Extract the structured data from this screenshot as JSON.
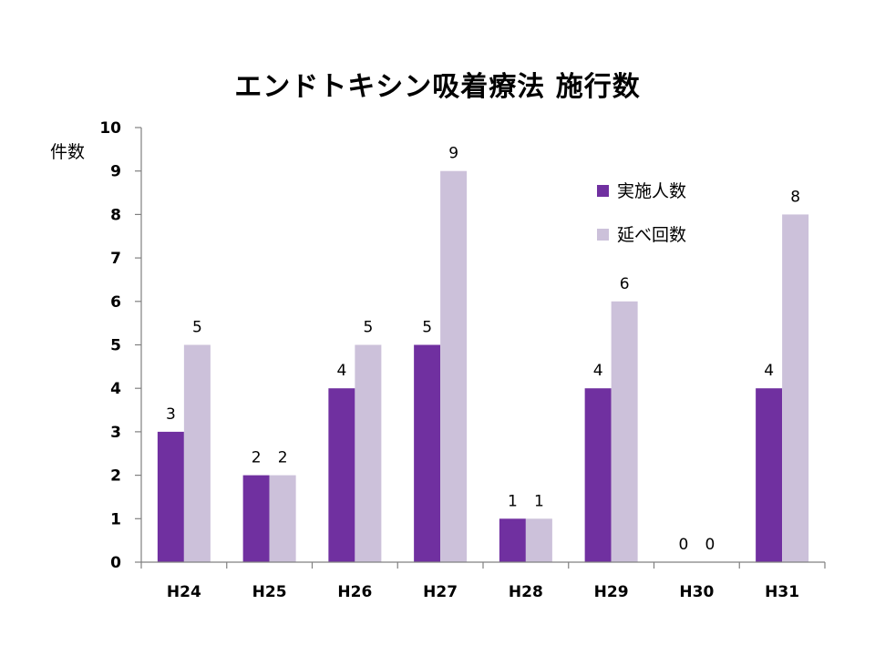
{
  "chart_data": {
    "type": "bar",
    "title": "エンドトキシン吸着療法 施行数",
    "ylabel": "件数",
    "xlabel": "",
    "categories": [
      "H24",
      "H25",
      "H26",
      "H27",
      "H28",
      "H29",
      "H30",
      "H31"
    ],
    "series": [
      {
        "name": "実施人数",
        "values": [
          3,
          2,
          4,
          5,
          1,
          4,
          0,
          4
        ],
        "color": "#7030A0"
      },
      {
        "name": "延べ回数",
        "values": [
          5,
          2,
          5,
          9,
          1,
          6,
          0,
          8
        ],
        "color": "#CCC1DA"
      }
    ],
    "ylim": [
      0,
      10
    ],
    "yticks": [
      0,
      1,
      2,
      3,
      4,
      5,
      6,
      7,
      8,
      9,
      10
    ],
    "grid": false,
    "legend_position": "top-right"
  }
}
